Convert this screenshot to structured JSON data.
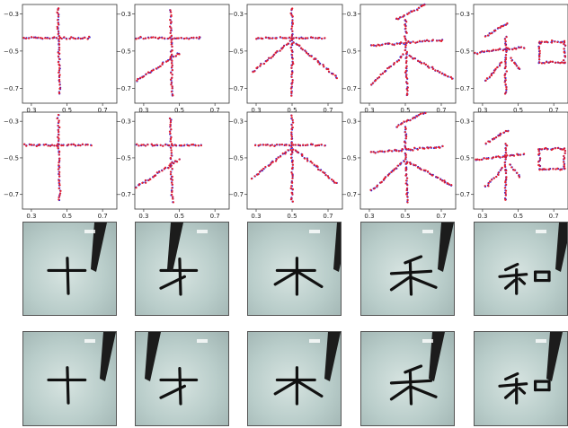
{
  "colors": {
    "trace_a": "#1f1fe6",
    "trace_b": "#e61f2a",
    "ink": "#111111",
    "pen": "#1c1c1c"
  },
  "chart_data": {
    "type": "scatter",
    "grid_rows": 2,
    "grid_cols": 5,
    "xlim": [
      0.25,
      0.78
    ],
    "ylim": [
      0.78,
      0.25
    ],
    "y_inverted": true,
    "x_ticks": [
      "0.3",
      "0.5",
      "0.7"
    ],
    "y_ticks": [
      "−0.3",
      "−0.5",
      "−0.7"
    ],
    "series_colors": [
      "#1f1fe6",
      "#e61f2a"
    ],
    "characters": [
      {
        "char": "十",
        "strokes": [
          [
            [
              0.26,
              -0.43
            ],
            [
              0.63,
              -0.43
            ]
          ],
          [
            [
              0.45,
              -0.27
            ],
            [
              0.46,
              -0.73
            ]
          ]
        ]
      },
      {
        "char": "才",
        "strokes": [
          [
            [
              0.26,
              -0.43
            ],
            [
              0.62,
              -0.43
            ]
          ],
          [
            [
              0.45,
              -0.28
            ],
            [
              0.46,
              -0.74
            ]
          ],
          [
            [
              0.5,
              -0.51
            ],
            [
              0.26,
              -0.66
            ]
          ]
        ]
      },
      {
        "char": "木",
        "strokes": [
          [
            [
              0.3,
              -0.43
            ],
            [
              0.68,
              -0.43
            ]
          ],
          [
            [
              0.5,
              -0.27
            ],
            [
              0.5,
              -0.74
            ]
          ],
          [
            [
              0.49,
              -0.45
            ],
            [
              0.28,
              -0.61
            ]
          ],
          [
            [
              0.51,
              -0.45
            ],
            [
              0.75,
              -0.64
            ]
          ]
        ]
      },
      {
        "char": "禾",
        "strokes": [
          [
            [
              0.45,
              -0.33
            ],
            [
              0.61,
              -0.25
            ]
          ],
          [
            [
              0.31,
              -0.47
            ],
            [
              0.71,
              -0.44
            ]
          ],
          [
            [
              0.5,
              -0.33
            ],
            [
              0.51,
              -0.74
            ]
          ],
          [
            [
              0.49,
              -0.52
            ],
            [
              0.31,
              -0.68
            ]
          ],
          [
            [
              0.51,
              -0.52
            ],
            [
              0.76,
              -0.65
            ]
          ]
        ]
      },
      {
        "char": "和",
        "strokes": [
          [
            [
              0.32,
              -0.42
            ],
            [
              0.44,
              -0.35
            ]
          ],
          [
            [
              0.26,
              -0.51
            ],
            [
              0.53,
              -0.48
            ]
          ],
          [
            [
              0.43,
              -0.42
            ],
            [
              0.43,
              -0.73
            ]
          ],
          [
            [
              0.41,
              -0.56
            ],
            [
              0.32,
              -0.66
            ]
          ],
          [
            [
              0.46,
              -0.54
            ],
            [
              0.51,
              -0.6
            ]
          ],
          [
            [
              0.62,
              -0.45
            ],
            [
              0.62,
              -0.56
            ]
          ],
          [
            [
              0.62,
              -0.45
            ],
            [
              0.76,
              -0.45
            ]
          ],
          [
            [
              0.76,
              -0.45
            ],
            [
              0.76,
              -0.56
            ]
          ],
          [
            [
              0.62,
              -0.56
            ],
            [
              0.76,
              -0.56
            ]
          ]
        ]
      }
    ]
  }
}
